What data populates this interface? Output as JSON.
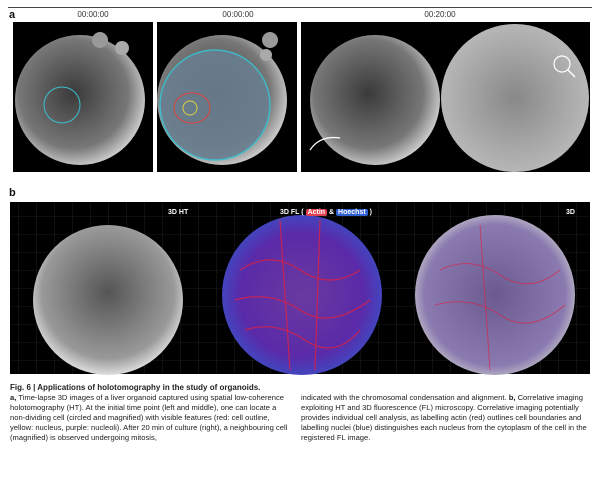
{
  "figure": {
    "panel_a": {
      "label": "a",
      "times": [
        "00:00:00",
        "00:00:00",
        "00:20:00"
      ]
    },
    "panel_b": {
      "label": "b",
      "views": {
        "ht": "3D HT",
        "fl_prefix": "3D FL (",
        "actin": "Actin",
        "amp": "&",
        "hoechst": "Hoechst",
        "fl_suffix": ")",
        "merged": "3D"
      }
    },
    "caption": {
      "title": "Fig. 6 | Applications of holotomography in the study of organoids.",
      "left_label": "a,",
      "left_text": "Time-lapse 3D images of a liver organoid captured using spatial low-coherence holotomography (HT). At the initial time point (left and middle), one can locate a non-dividing cell (circled and magnified) with visible features (red: cell outline, yellow: nucleus, purple: nucleoli). After 20 min of culture (right), a neighbouring cell (magnified) is observed undergoing mitosis,",
      "right_text_1": "indicated with the chromosomal condensation and alignment.",
      "right_label": "b,",
      "right_text_2": "Correlative imaging exploiting HT and 3D fluorescence (FL) microscopy. Correlative imaging potentially provides individual cell analysis, as labelling actin (red) outlines cell boundaries and labelling nuclei (blue) distinguishes each nucleus from the cytoplasm of the cell in the registered FL image."
    }
  }
}
